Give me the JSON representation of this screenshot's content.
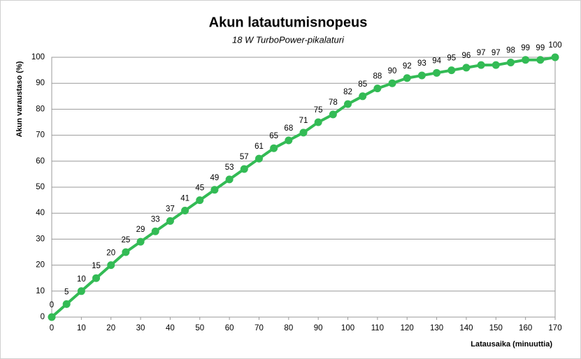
{
  "chart_data": {
    "type": "line",
    "title": "Akun latautumisnopeus",
    "subtitle": "18 W TurboPower-pikalaturi",
    "x_label": "Latausaika  (minuuttia)",
    "y_label": "Akun varaustaso  (%)",
    "x": [
      0,
      5,
      10,
      15,
      20,
      25,
      30,
      35,
      40,
      45,
      50,
      55,
      60,
      65,
      70,
      75,
      80,
      85,
      90,
      95,
      100,
      105,
      110,
      115,
      120,
      125,
      130,
      135,
      140,
      145,
      150,
      155,
      160,
      165,
      170
    ],
    "values": [
      0,
      5,
      10,
      15,
      20,
      25,
      29,
      33,
      37,
      41,
      45,
      49,
      53,
      57,
      61,
      65,
      68,
      71,
      75,
      78,
      82,
      85,
      88,
      90,
      92,
      93,
      94,
      95,
      96,
      97,
      97,
      98,
      99,
      99,
      100
    ],
    "color": "#33bb55",
    "xlim": [
      0,
      170
    ],
    "xticks": [
      0,
      10,
      20,
      30,
      40,
      50,
      60,
      70,
      80,
      90,
      100,
      110,
      120,
      130,
      140,
      150,
      160,
      170
    ],
    "ylim": [
      0,
      100
    ],
    "yticks": [
      0,
      10,
      20,
      30,
      40,
      50,
      60,
      70,
      80,
      90,
      100
    ],
    "grid": true
  }
}
